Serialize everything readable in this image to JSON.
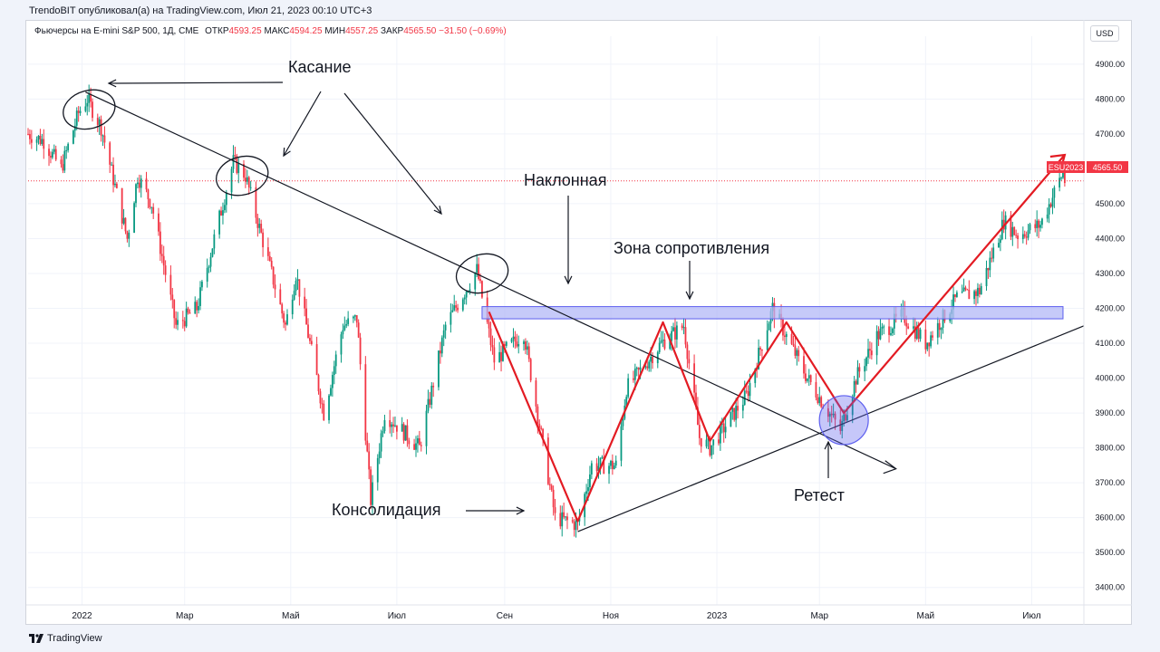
{
  "header": {
    "publisher": "TrendoBIT опубликовал(а) на TradingView.com, Июл 21, 2023 00:10 UTC+3",
    "symbol": "Фьючерсы на E-mini S&P 500, 1Д, CME",
    "open_label": "ОТКР",
    "open_value": "4593.25",
    "high_label": "МАКС",
    "high_value": "4594.25",
    "low_label": "МИН",
    "low_value": "4557.25",
    "close_label": "ЗАКР",
    "close_value": "4565.50",
    "change": "−31.50 (−0.69%)",
    "currency": "USD"
  },
  "footer": {
    "brand": "TradingView"
  },
  "colors": {
    "up": "#089981",
    "down": "#f23645",
    "annotation_red": "#e31b23",
    "zone_fill": "#b3b8f7",
    "zone_stroke": "#5d5fef",
    "text": "#131722"
  },
  "chart_data": {
    "type": "candlestick",
    "title": "",
    "xlabel": "",
    "ylabel": "",
    "ylim": [
      3350,
      4980
    ],
    "xlim": [
      "2021-12-01",
      "2023-07-31"
    ],
    "y_ticks": [
      "3400.00",
      "3500.00",
      "3600.00",
      "3700.00",
      "3800.00",
      "3900.00",
      "4000.00",
      "4100.00",
      "4200.00",
      "4300.00",
      "4400.00",
      "4500.00",
      "4600.00",
      "4700.00",
      "4800.00",
      "4900.00"
    ],
    "x_ticks": [
      {
        "label": "2022",
        "date": "2022-01-01"
      },
      {
        "label": "Мар",
        "date": "2022-03-01"
      },
      {
        "label": "Май",
        "date": "2022-05-01"
      },
      {
        "label": "Июл",
        "date": "2022-07-01"
      },
      {
        "label": "Сен",
        "date": "2022-09-01"
      },
      {
        "label": "Ноя",
        "date": "2022-11-01"
      },
      {
        "label": "2023",
        "date": "2023-01-01"
      },
      {
        "label": "Мар",
        "date": "2023-03-01"
      },
      {
        "label": "Май",
        "date": "2023-05-01"
      },
      {
        "label": "Июл",
        "date": "2023-07-01"
      }
    ],
    "price_path": [
      [
        "2021-12-01",
        4700
      ],
      [
        "2021-12-10",
        4680
      ],
      [
        "2021-12-20",
        4600
      ],
      [
        "2021-12-30",
        4760
      ],
      [
        "2022-01-04",
        4800
      ],
      [
        "2022-01-12",
        4720
      ],
      [
        "2022-01-27",
        4400
      ],
      [
        "2022-02-02",
        4580
      ],
      [
        "2022-02-10",
        4500
      ],
      [
        "2022-02-24",
        4150
      ],
      [
        "2022-03-08",
        4200
      ],
      [
        "2022-03-29",
        4620
      ],
      [
        "2022-04-05",
        4580
      ],
      [
        "2022-04-28",
        4150
      ],
      [
        "2022-05-04",
        4300
      ],
      [
        "2022-05-20",
        3900
      ],
      [
        "2022-05-31",
        4150
      ],
      [
        "2022-06-08",
        4170
      ],
      [
        "2022-06-16",
        3650
      ],
      [
        "2022-06-24",
        3900
      ],
      [
        "2022-07-14",
        3800
      ],
      [
        "2022-07-29",
        4150
      ],
      [
        "2022-08-16",
        4310
      ],
      [
        "2022-08-26",
        4050
      ],
      [
        "2022-09-12",
        4130
      ],
      [
        "2022-09-30",
        3600
      ],
      [
        "2022-10-13",
        3580
      ],
      [
        "2022-10-21",
        3750
      ],
      [
        "2022-11-04",
        3750
      ],
      [
        "2022-11-10",
        3970
      ],
      [
        "2022-11-30",
        4100
      ],
      [
        "2022-12-13",
        4150
      ],
      [
        "2022-12-22",
        3830
      ],
      [
        "2022-12-28",
        3800
      ],
      [
        "2023-01-18",
        3950
      ],
      [
        "2023-02-02",
        4200
      ],
      [
        "2023-02-22",
        4000
      ],
      [
        "2023-03-13",
        3850
      ],
      [
        "2023-03-22",
        4000
      ],
      [
        "2023-04-03",
        4120
      ],
      [
        "2023-04-18",
        4180
      ],
      [
        "2023-05-01",
        4100
      ],
      [
        "2023-05-19",
        4230
      ],
      [
        "2023-06-01",
        4250
      ],
      [
        "2023-06-15",
        4450
      ],
      [
        "2023-06-23",
        4410
      ],
      [
        "2023-07-06",
        4440
      ],
      [
        "2023-07-19",
        4590
      ],
      [
        "2023-07-20",
        4565.5
      ]
    ],
    "current_price": {
      "symbol": "ESU2023",
      "value": "4565.50",
      "numeric": 4565.5
    },
    "resistance_zone": {
      "from": "2022-08-19",
      "to": "2023-07-19",
      "low": 4170,
      "high": 4205
    },
    "descending_trendline": [
      [
        "2022-01-03",
        4820
      ],
      [
        "2023-04-14",
        3740
      ]
    ],
    "ascending_trendline": [
      [
        "2022-10-13",
        3560
      ],
      [
        "2023-07-31",
        4150
      ]
    ],
    "red_path": [
      [
        "2022-08-23",
        4190
      ],
      [
        "2022-10-13",
        3590
      ],
      [
        "2022-12-01",
        4160
      ],
      [
        "2022-12-28",
        3820
      ],
      [
        "2023-02-10",
        4160
      ],
      [
        "2023-03-15",
        3900
      ],
      [
        "2023-07-20",
        4640
      ]
    ],
    "touch_circles": [
      [
        "2022-01-03",
        4770
      ],
      [
        "2022-04-01",
        4580
      ],
      [
        "2022-08-17",
        4300
      ]
    ],
    "retest_circle": [
      "2023-03-15",
      3890
    ],
    "annotations": {
      "touch": "Касание",
      "trendline": "Наклонная",
      "resistance": "Зона сопротивления",
      "consolidation": "Консолидация",
      "retest": "Ретест"
    }
  }
}
